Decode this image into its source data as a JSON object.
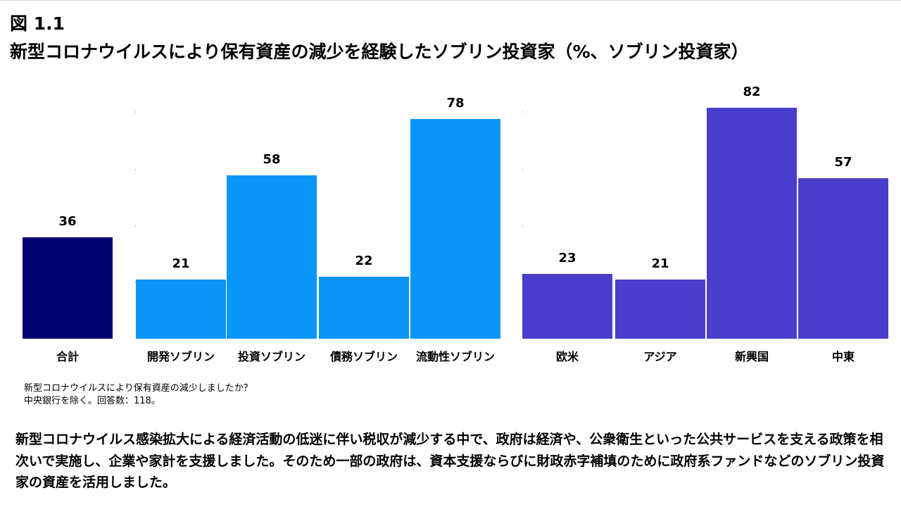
{
  "figure": {
    "label": "図 1.1",
    "title": "新型コロナウイルスにより保有資産の減少を経験したソブリン投資家（%、ソブリン投資家）"
  },
  "colors": {
    "total": "#02026e",
    "type": "#0996f7",
    "region": "#4a3ecc"
  },
  "chart_data": {
    "type": "bar",
    "title": "新型コロナウイルスにより保有資産の減少を経験したソブリン投資家（%、ソブリン投資家）",
    "unit": "%",
    "ylim": [
      0,
      100
    ],
    "grid": false,
    "groups": [
      {
        "categories": [
          "合計"
        ],
        "values": [
          36
        ]
      },
      {
        "categories": [
          "開発ソブリン",
          "投資ソブリン",
          "債務ソブリン",
          "流動性ソブリン"
        ],
        "values": [
          21,
          58,
          22,
          78
        ]
      },
      {
        "categories": [
          "欧米",
          "アジア",
          "新興国",
          "中東"
        ],
        "values": [
          23,
          21,
          82,
          57
        ]
      }
    ]
  },
  "notes": {
    "line1": "新型コロナウイルスにより保有資産の減少しましたか？",
    "line2": "中央銀行を除く。回答数：118。"
  },
  "body": {
    "text": "新型コロナウイルス感染拡大による経済活動の低迷に伴い税収が減少する中で、政府は経済や、公衆衛生といった公共サービスを支える政策を相次いで実施し、企業や家計を支援しました。そのため一部の政府は、資本支援ならびに財政赤字補填のために政府系ファンドなどのソブリン投資家の資産を活用しました。"
  }
}
